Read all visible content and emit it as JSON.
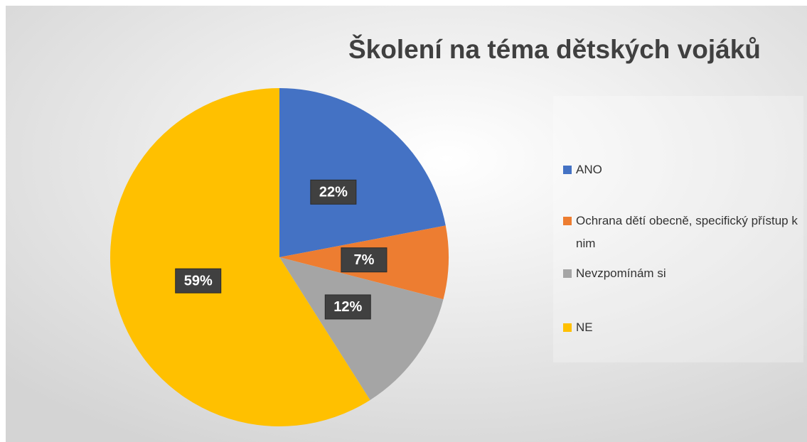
{
  "chart_data": {
    "type": "pie",
    "title": "Školení na téma dětských vojáků",
    "categories": [
      "ANO",
      "Ochrana dětí obecně, specifický přístup k nim",
      "Nevzpomínám si",
      "NE"
    ],
    "values": [
      22,
      7,
      12,
      59
    ],
    "value_labels": [
      "22%",
      "7%",
      "12%",
      "59%"
    ],
    "colors": [
      "#4472c4",
      "#ed7d31",
      "#a5a5a5",
      "#ffc000"
    ],
    "legend": "right"
  }
}
